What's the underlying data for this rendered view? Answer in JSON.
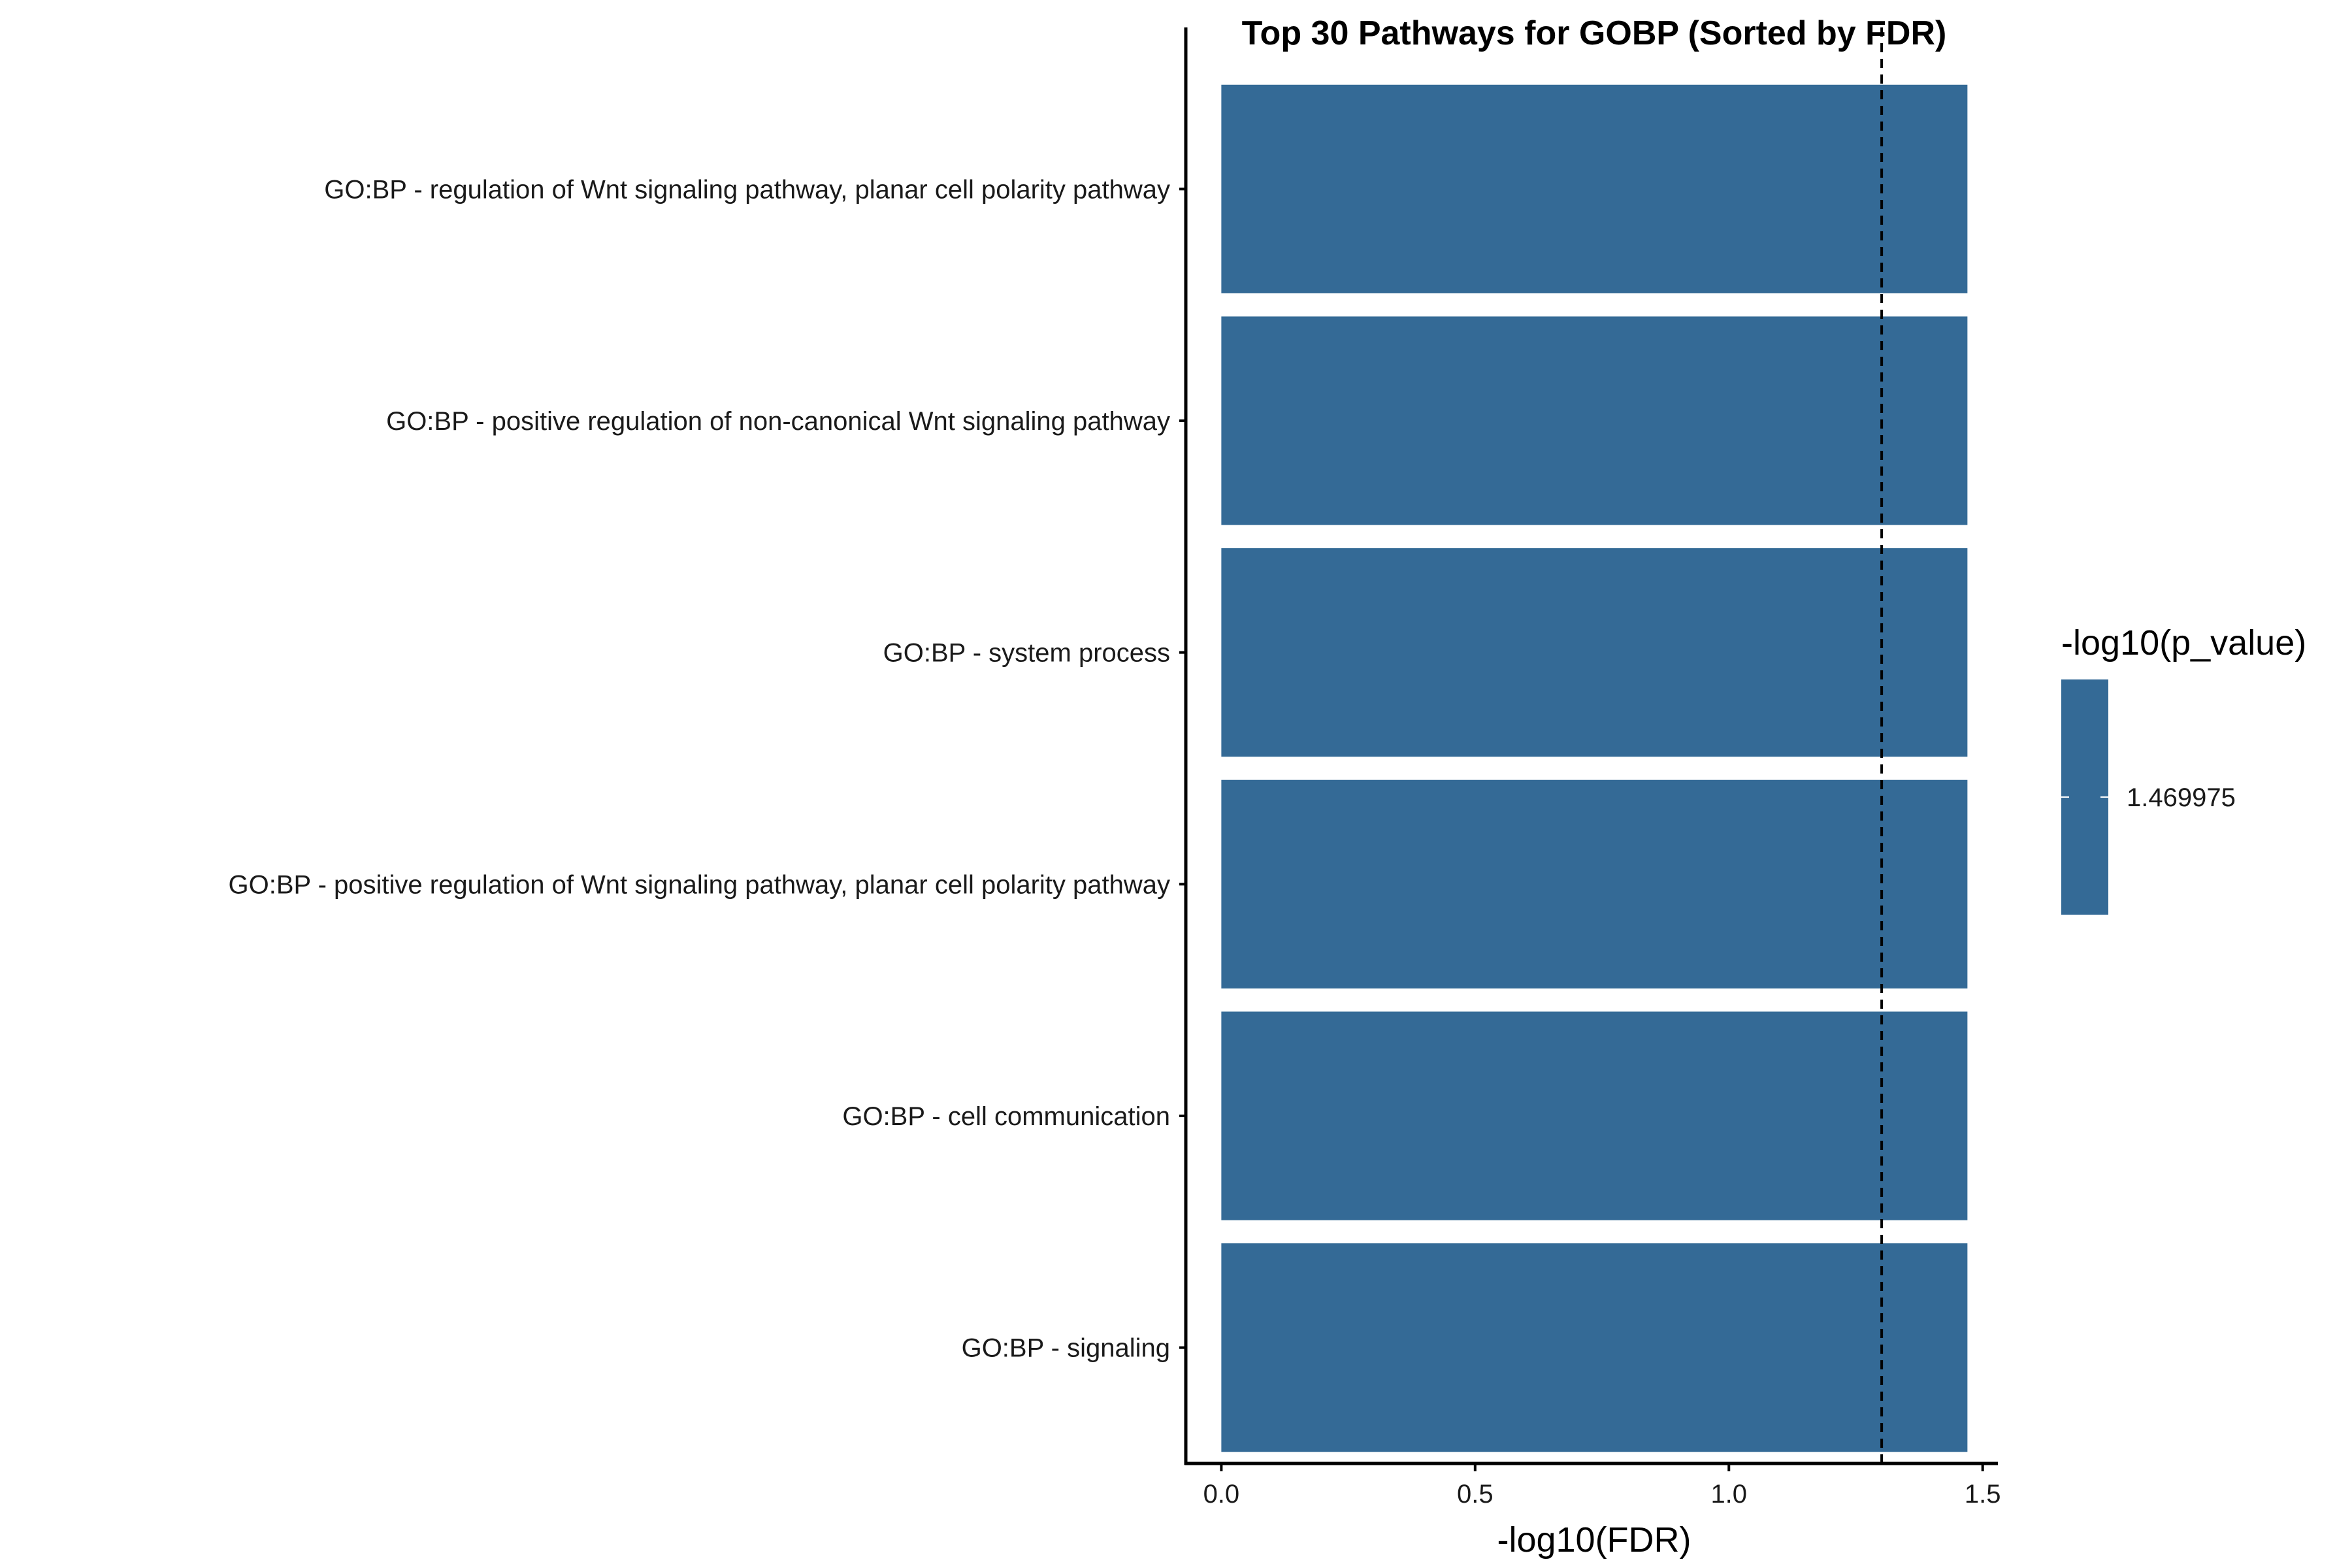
{
  "chart_data": {
    "type": "bar",
    "orientation": "horizontal",
    "title": "Top 30 Pathways for GOBP (Sorted by FDR)",
    "xlabel": "-log10(FDR)",
    "ylabel": "",
    "categories": [
      "GO:BP - regulation of Wnt signaling pathway, planar cell polarity pathway",
      "GO:BP - positive regulation of non-canonical Wnt signaling pathway",
      "GO:BP - system process",
      "GO:BP - positive regulation of Wnt signaling pathway, planar cell polarity pathway",
      "GO:BP - cell communication",
      "GO:BP - signaling"
    ],
    "values": [
      1.469975,
      1.469975,
      1.469975,
      1.469975,
      1.469975,
      1.469975
    ],
    "xlim": [
      -0.07,
      1.53
    ],
    "xticks": [
      0.0,
      0.5,
      1.0,
      1.5
    ],
    "xtick_labels": [
      "0.0",
      "0.5",
      "1.0",
      "1.5"
    ],
    "threshold_line": {
      "x": 1.30103,
      "style": "dashed"
    },
    "bar_color": "#346A96",
    "grid": false,
    "legend": {
      "title": "-log10(p_value)",
      "placement": "right",
      "labels": [
        "1.469975"
      ]
    }
  }
}
